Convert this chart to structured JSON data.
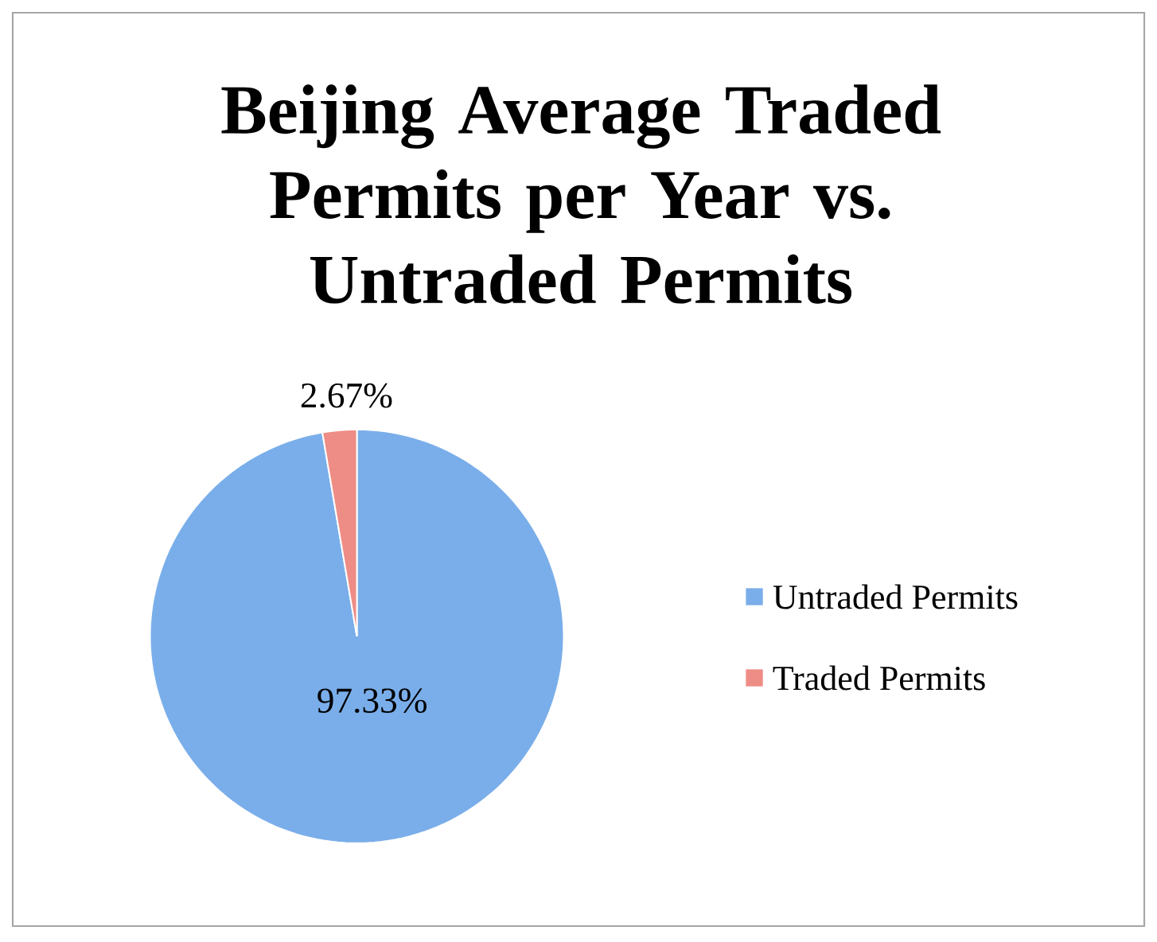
{
  "chart_data": {
    "type": "pie",
    "title": "Beijing Average Traded Permits per Year vs. Untraded Permits",
    "categories": [
      "Untraded Permits",
      "Traded Permits"
    ],
    "values": [
      97.33,
      2.67
    ],
    "colors": [
      "#7aaeea",
      "#ee8c86"
    ],
    "value_labels": [
      "97.33%",
      "2.67%"
    ],
    "legend": "right"
  }
}
